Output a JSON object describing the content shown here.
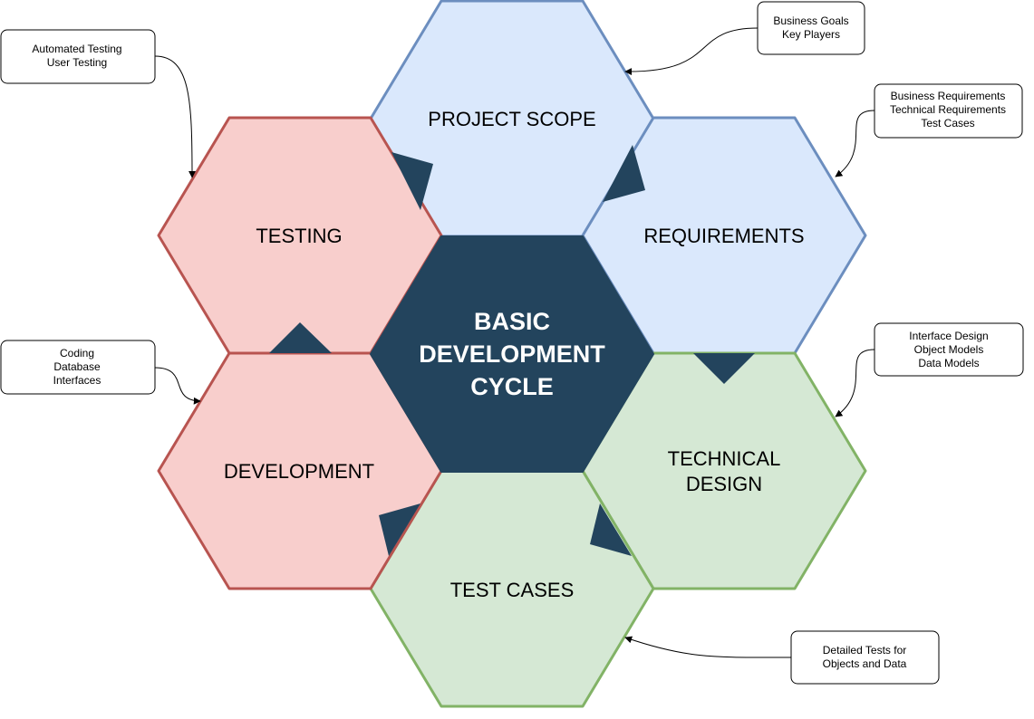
{
  "center": {
    "lines": [
      "BASIC",
      "DEVELOPMENT",
      "CYCLE"
    ],
    "color": "#23445d"
  },
  "hexagons": [
    {
      "id": "project-scope",
      "lines": [
        "PROJECT SCOPE"
      ],
      "fill": "#dae8fc",
      "stroke": "#6c8ebf"
    },
    {
      "id": "requirements",
      "lines": [
        "REQUIREMENTS"
      ],
      "fill": "#dae8fc",
      "stroke": "#6c8ebf"
    },
    {
      "id": "technical-design",
      "lines": [
        "TECHNICAL",
        "DESIGN"
      ],
      "fill": "#d5e8d4",
      "stroke": "#82b366"
    },
    {
      "id": "test-cases",
      "lines": [
        "TEST CASES"
      ],
      "fill": "#d5e8d4",
      "stroke": "#82b366"
    },
    {
      "id": "development",
      "lines": [
        "DEVELOPMENT"
      ],
      "fill": "#f8cecc",
      "stroke": "#b85450"
    },
    {
      "id": "testing",
      "lines": [
        "TESTING"
      ],
      "fill": "#f8cecc",
      "stroke": "#b85450"
    }
  ],
  "notes": [
    {
      "id": "business-goals",
      "lines": [
        "Business Goals",
        "Key Players"
      ]
    },
    {
      "id": "business-requirements",
      "lines": [
        "Business Requirements",
        "Technical Requirements",
        "Test Cases"
      ]
    },
    {
      "id": "interface-design",
      "lines": [
        "Interface Design",
        "Object Models",
        "Data Models"
      ]
    },
    {
      "id": "detailed-tests",
      "lines": [
        "Detailed Tests for",
        "Objects and Data"
      ]
    },
    {
      "id": "coding",
      "lines": [
        "Coding",
        "Database",
        "Interfaces"
      ]
    },
    {
      "id": "automated-testing",
      "lines": [
        "Automated Testing",
        "User Testing"
      ]
    }
  ]
}
